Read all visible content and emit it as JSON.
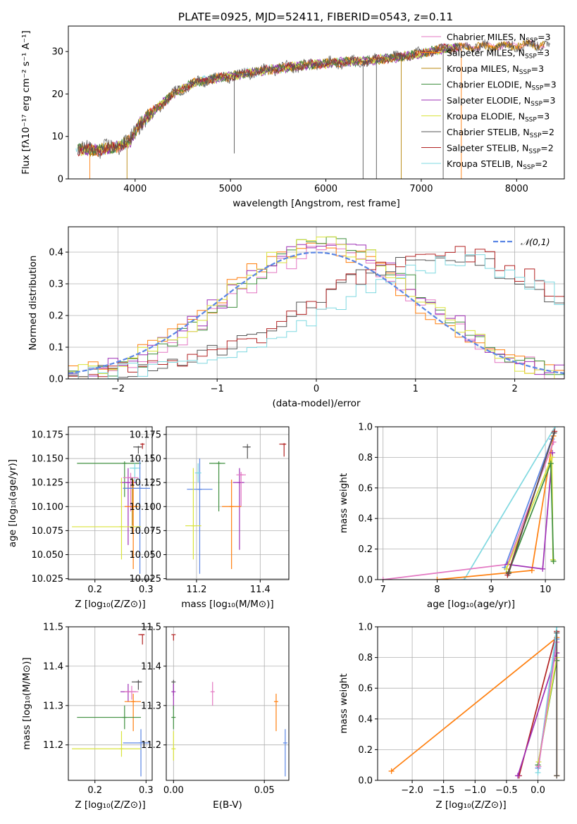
{
  "title": "PLATE=0925, MJD=52411, FIBERID=0543, z=0.11",
  "colors": {
    "chabrier_miles": "#e377c2",
    "salpeter_miles": "#ff7f0e",
    "kroupa_miles": "#b8860b",
    "chabrier_elodie": "#3f8f3f",
    "salpeter_elodie": "#9e2fb5",
    "kroupa_elodie": "#d9e33a",
    "chabrier_stelib": "#555555",
    "salpeter_stelib": "#b22222",
    "kroupa_stelib": "#7fd8e0"
  },
  "chart_data": [
    {
      "type": "line",
      "id": "spectrum",
      "xlabel": "wavelength [Angstrom, rest frame]",
      "ylabel": "Flux [fλ10⁻¹⁷ erg cm⁻² s⁻¹ A⁻¹]",
      "xlim": [
        3300,
        8500
      ],
      "ylim": [
        0,
        36
      ],
      "xticks": [
        4000,
        5000,
        6000,
        7000,
        8000
      ],
      "yticks": [
        0,
        10,
        20,
        30
      ],
      "grid": false,
      "legend_position": "top-right",
      "legend": [
        {
          "label": "Chabrier MILES, N",
          "sub": "SSP",
          "tail": "=3",
          "color_key": "chabrier_miles"
        },
        {
          "label": "Salpeter MILES, N",
          "sub": "SSP",
          "tail": "=3",
          "color_key": "salpeter_miles"
        },
        {
          "label": "Kroupa MILES, N",
          "sub": "SSP",
          "tail": "=3",
          "color_key": "kroupa_miles"
        },
        {
          "label": "Chabrier ELODIE, N",
          "sub": "SSP",
          "tail": "=3",
          "color_key": "chabrier_elodie"
        },
        {
          "label": "Salpeter ELODIE, N",
          "sub": "SSP",
          "tail": "=3",
          "color_key": "salpeter_elodie"
        },
        {
          "label": "Kroupa ELODIE, N",
          "sub": "SSP",
          "tail": "=3",
          "color_key": "kroupa_elodie"
        },
        {
          "label": "Chabrier STELIB, N",
          "sub": "SSP",
          "tail": "=2",
          "color_key": "chabrier_stelib"
        },
        {
          "label": "Salpeter STELIB, N",
          "sub": "SSP",
          "tail": "=2",
          "color_key": "salpeter_stelib"
        },
        {
          "label": "Kroupa STELIB, N",
          "sub": "SSP",
          "tail": "=2",
          "color_key": "kroupa_stelib"
        }
      ],
      "trend": [
        [
          3400,
          7
        ],
        [
          3600,
          6.8
        ],
        [
          3800,
          7.5
        ],
        [
          3950,
          9
        ],
        [
          4050,
          13
        ],
        [
          4200,
          16
        ],
        [
          4400,
          20
        ],
        [
          4600,
          22.5
        ],
        [
          4800,
          23.5
        ],
        [
          5000,
          24.2
        ],
        [
          5200,
          25
        ],
        [
          5500,
          26
        ],
        [
          5800,
          26.8
        ],
        [
          6100,
          27.4
        ],
        [
          6400,
          27.8
        ],
        [
          6700,
          28.5
        ],
        [
          7000,
          29.5
        ],
        [
          7200,
          30.5
        ],
        [
          7400,
          31
        ],
        [
          7700,
          31.2
        ],
        [
          8000,
          31.5
        ],
        [
          8300,
          31.6
        ]
      ],
      "dips": [
        {
          "x": 3525,
          "y": 0,
          "color_key": "salpeter_miles"
        },
        {
          "x": 3915,
          "y": 0,
          "color_key": "kroupa_miles"
        },
        {
          "x": 5040,
          "y": 6,
          "color_key": "chabrier_stelib"
        },
        {
          "x": 6390,
          "y": 0,
          "color_key": "chabrier_stelib"
        },
        {
          "x": 6530,
          "y": 0,
          "color_key": "chabrier_stelib"
        },
        {
          "x": 6790,
          "y": 0,
          "color_key": "kroupa_miles"
        },
        {
          "x": 7230,
          "y": 0,
          "color_key": "chabrier_stelib"
        },
        {
          "x": 7420,
          "y": 0,
          "color_key": "salpeter_miles"
        }
      ]
    },
    {
      "type": "histogram",
      "id": "residuals",
      "xlabel": "(data-model)/error",
      "ylabel": "Normed distribution",
      "xlim": [
        -2.5,
        2.5
      ],
      "ylim": [
        0,
        0.48
      ],
      "xticks": [
        -2,
        -1,
        0,
        1,
        2
      ],
      "yticks": [
        0.0,
        0.1,
        0.2,
        0.3,
        0.4
      ],
      "grid": true,
      "legend_position": "top-right",
      "gaussian": {
        "label": "𝒩(0,1)",
        "color": "#5b86e5",
        "mean": 0,
        "sigma": 1
      },
      "bin_width": 0.1,
      "series": [
        {
          "color_key": "chabrier_miles",
          "shape": "normal",
          "center": 0.1,
          "peak": 0.4
        },
        {
          "color_key": "salpeter_miles",
          "shape": "normal",
          "center": 0.0,
          "peak": 0.42
        },
        {
          "color_key": "chabrier_elodie",
          "shape": "normal",
          "center": 0.15,
          "peak": 0.43
        },
        {
          "color_key": "salpeter_elodie",
          "shape": "normal",
          "center": 0.1,
          "peak": 0.44
        },
        {
          "color_key": "kroupa_elodie",
          "shape": "normal",
          "center": 0.05,
          "peak": 0.43
        },
        {
          "color_key": "chabrier_stelib",
          "shape": "shifted",
          "center": 1.2,
          "peak": 0.38
        },
        {
          "color_key": "salpeter_stelib",
          "shape": "shifted",
          "center": 1.3,
          "peak": 0.39
        },
        {
          "color_key": "kroupa_stelib",
          "shape": "shifted",
          "center": 1.4,
          "peak": 0.36
        }
      ]
    },
    {
      "type": "scatter",
      "id": "age-vs-z",
      "xlabel": "Z [log₁₀(Z/Z⊙)]",
      "ylabel": "age  [log₁₀(age/yr)]",
      "xlim": [
        0.148,
        0.312
      ],
      "ylim": [
        10.024,
        10.183
      ],
      "xticks": [
        0.2,
        0.3
      ],
      "yticks": [
        10.025,
        10.05,
        10.075,
        10.1,
        10.125,
        10.15,
        10.175
      ],
      "grid": true,
      "points": [
        {
          "color_key": "salpeter_stelib",
          "x": 0.293,
          "y": 10.165,
          "xlo": 0.29,
          "xhi": 0.296,
          "ylo": 10.16,
          "yhi": 10.166
        },
        {
          "color_key": "chabrier_stelib",
          "x": 0.285,
          "y": 10.162,
          "xlo": 0.275,
          "xhi": 0.292,
          "ylo": 10.155,
          "yhi": 10.163
        },
        {
          "color_key": "chabrier_elodie",
          "x": 0.258,
          "y": 10.145,
          "xlo": 0.165,
          "xhi": 0.29,
          "ylo": 10.11,
          "yhi": 10.147
        },
        {
          "color_key": "kroupa_stelib",
          "x": 0.278,
          "y": 10.14,
          "xlo": 0.268,
          "xhi": 0.289,
          "ylo": 10.125,
          "yhi": 10.145
        },
        {
          "color_key": "salpeter_elodie",
          "x": 0.265,
          "y": 10.125,
          "xlo": 0.25,
          "xhi": 0.28,
          "ylo": 10.06,
          "yhi": 10.14
        },
        {
          "color_key": "chabrier_miles",
          "x": 0.27,
          "y": 10.13,
          "xlo": 0.255,
          "xhi": 0.285,
          "ylo": 10.095,
          "yhi": 10.135
        },
        {
          "color_key": "kroupa_miles",
          "x": 0.273,
          "y": 10.119,
          "xlo": 0.255,
          "xhi": 0.29,
          "ylo": 10.08,
          "yhi": 10.13
        },
        {
          "color_key": "salpeter_miles",
          "x": 0.275,
          "y": 10.1,
          "xlo": 0.258,
          "xhi": 0.285,
          "ylo": 10.035,
          "yhi": 10.128
        },
        {
          "color_key": "blue",
          "x": 0.288,
          "y": 10.119,
          "xlo": 0.255,
          "xhi": 0.308,
          "ylo": 10.03,
          "yhi": 10.148
        },
        {
          "color_key": "kroupa_elodie",
          "x": 0.252,
          "y": 10.079,
          "xlo": 0.155,
          "xhi": 0.29,
          "ylo": 10.045,
          "yhi": 10.13
        }
      ]
    },
    {
      "type": "scatter",
      "id": "age-vs-mass",
      "xlabel": "mass [log₁₀(M/M⊙)]",
      "ylabel": "",
      "xlim": [
        11.105,
        11.49
      ],
      "ylim": [
        10.024,
        10.183
      ],
      "xticks": [
        11.2,
        11.4
      ],
      "yticks": [
        10.025,
        10.05,
        10.075,
        10.1,
        10.125,
        10.15,
        10.175
      ],
      "grid": true,
      "points": [
        {
          "color_key": "salpeter_stelib",
          "x": 11.475,
          "y": 10.165,
          "xlo": 11.46,
          "xhi": 11.48,
          "ylo": 10.152,
          "yhi": 10.166
        },
        {
          "color_key": "chabrier_stelib",
          "x": 11.36,
          "y": 10.162,
          "xlo": 11.345,
          "xhi": 11.37,
          "ylo": 10.15,
          "yhi": 10.165
        },
        {
          "color_key": "chabrier_elodie",
          "x": 11.27,
          "y": 10.145,
          "xlo": 11.24,
          "xhi": 11.29,
          "ylo": 10.095,
          "yhi": 10.147
        },
        {
          "color_key": "salpeter_elodie",
          "x": 11.335,
          "y": 10.125,
          "xlo": 11.315,
          "xhi": 11.35,
          "ylo": 10.055,
          "yhi": 10.14
        },
        {
          "color_key": "chabrier_miles",
          "x": 11.34,
          "y": 10.133,
          "xlo": 11.325,
          "xhi": 11.355,
          "ylo": 10.1,
          "yhi": 10.136
        },
        {
          "color_key": "salpeter_miles",
          "x": 11.31,
          "y": 10.1,
          "xlo": 11.28,
          "xhi": 11.34,
          "ylo": 10.035,
          "yhi": 10.128
        },
        {
          "color_key": "blue",
          "x": 11.21,
          "y": 10.118,
          "xlo": 11.17,
          "xhi": 11.25,
          "ylo": 10.03,
          "yhi": 10.15
        },
        {
          "color_key": "kroupa_elodie",
          "x": 11.19,
          "y": 10.08,
          "xlo": 11.165,
          "xhi": 11.215,
          "ylo": 10.045,
          "yhi": 10.14
        },
        {
          "color_key": "kroupa_stelib",
          "x": 11.205,
          "y": 10.135,
          "xlo": 11.195,
          "xhi": 11.215,
          "ylo": 10.125,
          "yhi": 10.145
        }
      ]
    },
    {
      "type": "line",
      "id": "weight-vs-age",
      "xlabel": "age  [log₁₀(age/yr)]",
      "ylabel": "mass weight",
      "xlim": [
        6.9,
        10.35
      ],
      "ylim": [
        0,
        1.0
      ],
      "xticks": [
        7,
        8,
        9,
        10
      ],
      "yticks": [
        0.0,
        0.2,
        0.4,
        0.6,
        0.8,
        1.0
      ],
      "grid": true,
      "series": [
        {
          "color_key": "kroupa_stelib",
          "points": [
            [
              8.5,
              0.0
            ],
            [
              10.18,
              1.0
            ]
          ]
        },
        {
          "color_key": "blue",
          "points": [
            [
              9.25,
              0.08
            ],
            [
              10.12,
              0.92
            ]
          ]
        },
        {
          "color_key": "salpeter_miles",
          "points": [
            [
              8.0,
              0.0
            ],
            [
              9.75,
              0.06
            ],
            [
              10.15,
              0.94
            ]
          ]
        },
        {
          "color_key": "chabrier_miles",
          "points": [
            [
              7.0,
              0.0
            ],
            [
              9.3,
              0.1
            ],
            [
              10.15,
              0.9
            ]
          ]
        },
        {
          "color_key": "salpeter_elodie",
          "points": [
            [
              9.3,
              0.1
            ],
            [
              9.95,
              0.07
            ],
            [
              10.13,
              0.83
            ]
          ]
        },
        {
          "color_key": "kroupa_elodie",
          "points": [
            [
              9.28,
              0.07
            ],
            [
              10.12,
              0.8
            ],
            [
              10.14,
              0.13
            ]
          ]
        },
        {
          "color_key": "chabrier_elodie",
          "points": [
            [
              9.32,
              0.05
            ],
            [
              10.1,
              0.76
            ],
            [
              10.15,
              0.12
            ]
          ]
        },
        {
          "color_key": "salpeter_stelib",
          "points": [
            [
              9.3,
              0.03
            ],
            [
              10.17,
              0.97
            ]
          ]
        },
        {
          "color_key": "chabrier_stelib",
          "points": [
            [
              9.32,
              0.04
            ],
            [
              10.16,
              0.96
            ]
          ]
        }
      ]
    },
    {
      "type": "scatter",
      "id": "mass-vs-z",
      "xlabel": "Z [log₁₀(Z/Z⊙)]",
      "ylabel": "mass [log₁₀(M/M⊙)]",
      "xlim": [
        0.148,
        0.312
      ],
      "ylim": [
        11.11,
        11.5
      ],
      "xticks": [
        0.2,
        0.3
      ],
      "yticks": [
        11.2,
        11.3,
        11.4,
        11.5
      ],
      "grid": true,
      "points": [
        {
          "color_key": "salpeter_stelib",
          "x": 0.293,
          "y": 11.48,
          "xlo": 0.285,
          "xhi": 0.296,
          "ylo": 11.455,
          "yhi": 11.48
        },
        {
          "color_key": "chabrier_stelib",
          "x": 0.285,
          "y": 11.36,
          "xlo": 0.272,
          "xhi": 0.292,
          "ylo": 11.34,
          "yhi": 11.365
        },
        {
          "color_key": "salpeter_elodie",
          "x": 0.265,
          "y": 11.335,
          "xlo": 0.25,
          "xhi": 0.28,
          "ylo": 11.31,
          "yhi": 11.355
        },
        {
          "color_key": "chabrier_miles",
          "x": 0.272,
          "y": 11.335,
          "xlo": 0.258,
          "xhi": 0.285,
          "ylo": 11.315,
          "yhi": 11.35
        },
        {
          "color_key": "salpeter_miles",
          "x": 0.275,
          "y": 11.31,
          "xlo": 0.258,
          "xhi": 0.29,
          "ylo": 11.235,
          "yhi": 11.33
        },
        {
          "color_key": "chabrier_elodie",
          "x": 0.258,
          "y": 11.27,
          "xlo": 0.165,
          "xhi": 0.29,
          "ylo": 11.24,
          "yhi": 11.3
        },
        {
          "color_key": "blue",
          "x": 0.29,
          "y": 11.205,
          "xlo": 0.255,
          "xhi": 0.308,
          "ylo": 11.12,
          "yhi": 11.24
        },
        {
          "color_key": "kroupa_elodie",
          "x": 0.252,
          "y": 11.19,
          "xlo": 0.155,
          "xhi": 0.29,
          "ylo": 11.17,
          "yhi": 11.235
        }
      ]
    },
    {
      "type": "scatter",
      "id": "mass-vs-ebv",
      "xlabel": "E(B-V)",
      "ylabel": "",
      "xlim": [
        -0.004,
        0.0635
      ],
      "ylim": [
        11.11,
        11.5
      ],
      "xticks": [
        0.0,
        0.05
      ],
      "yticks": [
        11.2,
        11.3,
        11.4,
        11.5
      ],
      "grid": true,
      "points": [
        {
          "color_key": "salpeter_stelib",
          "x": 0.0,
          "y": 11.48,
          "ylo": 11.465,
          "yhi": 11.48
        },
        {
          "color_key": "chabrier_stelib",
          "x": 0.0,
          "y": 11.36,
          "ylo": 11.325,
          "yhi": 11.365
        },
        {
          "color_key": "salpeter_elodie",
          "x": 0.0,
          "y": 11.335,
          "ylo": 11.29,
          "yhi": 11.355
        },
        {
          "color_key": "chabrier_elodie",
          "x": 0.0,
          "y": 11.27,
          "ylo": 11.24,
          "yhi": 11.3
        },
        {
          "color_key": "kroupa_elodie",
          "x": 0.0,
          "y": 11.19,
          "ylo": 11.16,
          "yhi": 11.235
        },
        {
          "color_key": "chabrier_miles",
          "x": 0.0215,
          "y": 11.335,
          "ylo": 11.3,
          "yhi": 11.36
        },
        {
          "color_key": "salpeter_miles",
          "x": 0.0565,
          "y": 11.31,
          "ylo": 11.235,
          "yhi": 11.33
        },
        {
          "color_key": "blue",
          "x": 0.0615,
          "y": 11.205,
          "ylo": 11.12,
          "yhi": 11.24
        }
      ]
    },
    {
      "type": "line",
      "id": "weight-vs-z",
      "xlabel": "Z [log₁₀(Z/Z⊙)]",
      "ylabel": "mass weight",
      "xlim": [
        -2.55,
        0.42
      ],
      "ylim": [
        0,
        1.0
      ],
      "xticks": [
        -2.0,
        -1.5,
        -1.0,
        -0.5,
        0.0
      ],
      "yticks": [
        0.0,
        0.2,
        0.4,
        0.6,
        0.8,
        1.0
      ],
      "grid": true,
      "series": [
        {
          "color_key": "salpeter_miles",
          "points": [
            [
              -2.33,
              0.06
            ],
            [
              0.3,
              0.93
            ],
            [
              0.3,
              0.03
            ]
          ]
        },
        {
          "color_key": "salpeter_stelib",
          "points": [
            [
              -0.3,
              0.03
            ],
            [
              0.3,
              0.97
            ]
          ]
        },
        {
          "color_key": "salpeter_elodie",
          "points": [
            [
              -0.32,
              0.03
            ],
            [
              0.3,
              0.83
            ]
          ]
        },
        {
          "color_key": "blue",
          "points": [
            [
              0.0,
              0.08
            ],
            [
              0.3,
              0.92
            ]
          ]
        },
        {
          "color_key": "kroupa_stelib",
          "points": [
            [
              0.0,
              0.05
            ],
            [
              0.3,
              1.0
            ]
          ]
        },
        {
          "color_key": "chabrier_elodie",
          "points": [
            [
              0.0,
              0.1
            ],
            [
              0.3,
              0.78
            ]
          ]
        },
        {
          "color_key": "kroupa_elodie",
          "points": [
            [
              0.01,
              0.12
            ],
            [
              0.3,
              0.8
            ]
          ]
        },
        {
          "color_key": "chabrier_miles",
          "points": [
            [
              0.01,
              0.09
            ],
            [
              0.3,
              0.9
            ]
          ]
        },
        {
          "color_key": "chabrier_stelib",
          "points": [
            [
              0.3,
              0.03
            ],
            [
              0.3,
              0.96
            ]
          ]
        }
      ]
    }
  ],
  "extra_colors": {
    "blue": "#5b86e5"
  }
}
